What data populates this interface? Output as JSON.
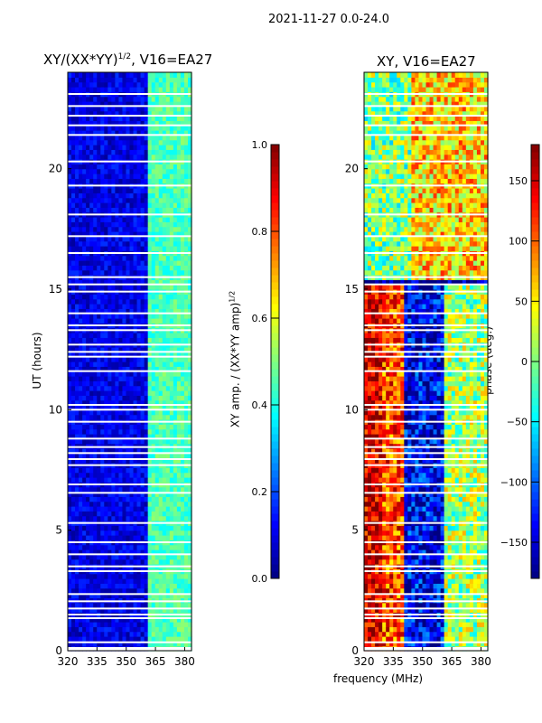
{
  "suptitle": "2021-11-27 0.0-24.0",
  "chart_data": [
    {
      "type": "heatmap",
      "title": "XY/(XX*YY)",
      "title_sup": "1/2",
      "title_suffix": ", V16=EA27",
      "xlabel": "",
      "ylabel": "UT (hours)",
      "xlim": [
        320,
        383.5
      ],
      "ylim": [
        0,
        24
      ],
      "xticks": [
        "320",
        "335",
        "350",
        "365",
        "380"
      ],
      "yticks": [
        "0",
        "5",
        "10",
        "15",
        "20"
      ],
      "colorbar": {
        "label": "XY amp. / (XX*YY amp)",
        "label_sup": "1/2",
        "range": [
          0,
          1
        ],
        "ticks": [
          "0.0",
          "0.2",
          "0.4",
          "0.6",
          "0.8",
          "1.0"
        ],
        "cmap": "jet"
      },
      "regions": [
        {
          "freq": [
            320,
            362
          ],
          "value": 0.1
        },
        {
          "freq": [
            362,
            383.5
          ],
          "value": 0.45
        }
      ]
    },
    {
      "type": "heatmap",
      "title": "XY, V16=EA27",
      "xlabel": "frequency (MHz)",
      "ylabel": "",
      "xlim": [
        320,
        383.5
      ],
      "ylim": [
        0,
        24
      ],
      "xticks": [
        "320",
        "335",
        "350",
        "365",
        "380"
      ],
      "yticks": [
        "0",
        "5",
        "10",
        "15",
        "20"
      ],
      "colorbar": {
        "label": "phase (deg.)",
        "range": [
          -180,
          180
        ],
        "ticks": [
          "−150",
          "−100",
          "−50",
          "0",
          "50",
          "100",
          "150"
        ],
        "cmap": "jet"
      },
      "regions": [
        {
          "time": [
            15.5,
            24
          ],
          "freq": [
            320,
            345
          ],
          "value": 0
        },
        {
          "time": [
            15.5,
            24
          ],
          "freq": [
            345,
            383.5
          ],
          "value": 60
        },
        {
          "time": [
            0,
            15.2
          ],
          "freq": [
            320,
            330
          ],
          "value": 150
        },
        {
          "time": [
            0,
            15.2
          ],
          "freq": [
            330,
            340
          ],
          "value": 110
        },
        {
          "time": [
            0,
            15.2
          ],
          "freq": [
            340,
            362
          ],
          "value": -140
        },
        {
          "time": [
            0,
            15.2
          ],
          "freq": [
            362,
            383.5
          ],
          "value": 10
        }
      ]
    }
  ],
  "gaps_hours": [
    0.35,
    1.35,
    1.5,
    1.75,
    2.05,
    2.35,
    3.3,
    3.5,
    4.0,
    4.5,
    5.3,
    6.55,
    6.9,
    7.7,
    7.95,
    8.2,
    8.45,
    8.8,
    9.5,
    10.0,
    10.2,
    11.6,
    12.2,
    12.4,
    12.7,
    13.3,
    13.5,
    14.0,
    14.9,
    15.2,
    15.5,
    16.5,
    17.2,
    18.1,
    19.3,
    20.3,
    21.4,
    21.8,
    22.2,
    22.6,
    23.1
  ]
}
